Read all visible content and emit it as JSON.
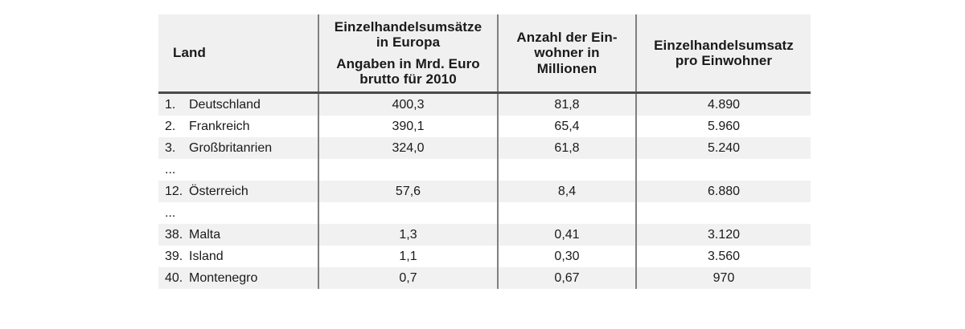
{
  "table": {
    "header": {
      "col1": "Land",
      "col2_line1": "Einzelhandelsumsätze",
      "col2_line2": "in Europa",
      "col2_line3": "Angaben in Mrd. Euro",
      "col2_line4": "brutto für 2010",
      "col3_line1": "Anzahl der Ein-",
      "col3_line2": "wohner in",
      "col3_line3": "Millionen",
      "col4_line1": "Einzelhandelsumsatz",
      "col4_line2": "pro Einwohner"
    },
    "rows": [
      {
        "type": "data",
        "num": "1.",
        "land": "Deutschland",
        "umsatz_mrd": "400,3",
        "einwohner_mio": "81,8",
        "umsatz_pro_einwohner": "4.890"
      },
      {
        "type": "data",
        "num": "2.",
        "land": "Frankreich",
        "umsatz_mrd": "390,1",
        "einwohner_mio": "65,4",
        "umsatz_pro_einwohner": "5.960"
      },
      {
        "type": "data",
        "num": "3.",
        "land": "Großbritanrien",
        "umsatz_mrd": "324,0",
        "einwohner_mio": "61,8",
        "umsatz_pro_einwohner": "5.240"
      },
      {
        "type": "ellipsis",
        "text": "..."
      },
      {
        "type": "data",
        "num": "12.",
        "land": "Österreich",
        "umsatz_mrd": "57,6",
        "einwohner_mio": "8,4",
        "umsatz_pro_einwohner": "6.880"
      },
      {
        "type": "ellipsis",
        "text": "..."
      },
      {
        "type": "data",
        "num": "38.",
        "land": "Malta",
        "umsatz_mrd": "1,3",
        "einwohner_mio": "0,41",
        "umsatz_pro_einwohner": "3.120"
      },
      {
        "type": "data",
        "num": "39.",
        "land": "Island",
        "umsatz_mrd": "1,1",
        "einwohner_mio": "0,30",
        "umsatz_pro_einwohner": "3.560"
      },
      {
        "type": "data",
        "num": "40.",
        "land": "Montenegro",
        "umsatz_mrd": "0,7",
        "einwohner_mio": "0,67",
        "umsatz_pro_einwohner": "970"
      }
    ],
    "colors": {
      "header_bg": "#f0f0f0",
      "stripe_bg": "#f1f1f1",
      "grid_line": "#808080",
      "header_underline": "#4a4a4a",
      "text": "#1a1a1a"
    }
  }
}
